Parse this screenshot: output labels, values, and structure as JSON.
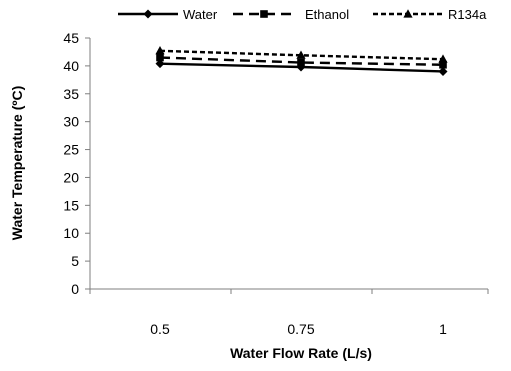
{
  "chart_data": {
    "type": "line",
    "x": [
      "0.5",
      "0.75",
      "1"
    ],
    "xlabel": "Water Flow Rate (L/s)",
    "ylabel": "Water Temperature (ºC)",
    "ylim": [
      0,
      45
    ],
    "yticks": [
      "0",
      "5",
      "10",
      "15",
      "20",
      "25",
      "30",
      "35",
      "40",
      "45"
    ],
    "grid": false,
    "legend_position": "top",
    "series": [
      {
        "name": "Water",
        "values": [
          40.4,
          39.8,
          39.0
        ],
        "marker": "diamond",
        "line_style": "solid"
      },
      {
        "name": "Ethanol",
        "values": [
          41.5,
          40.6,
          40.2
        ],
        "marker": "square",
        "line_style": "long-dash"
      },
      {
        "name": "R134a",
        "values": [
          42.7,
          41.9,
          41.2
        ],
        "marker": "triangle",
        "line_style": "short-dash"
      }
    ]
  }
}
